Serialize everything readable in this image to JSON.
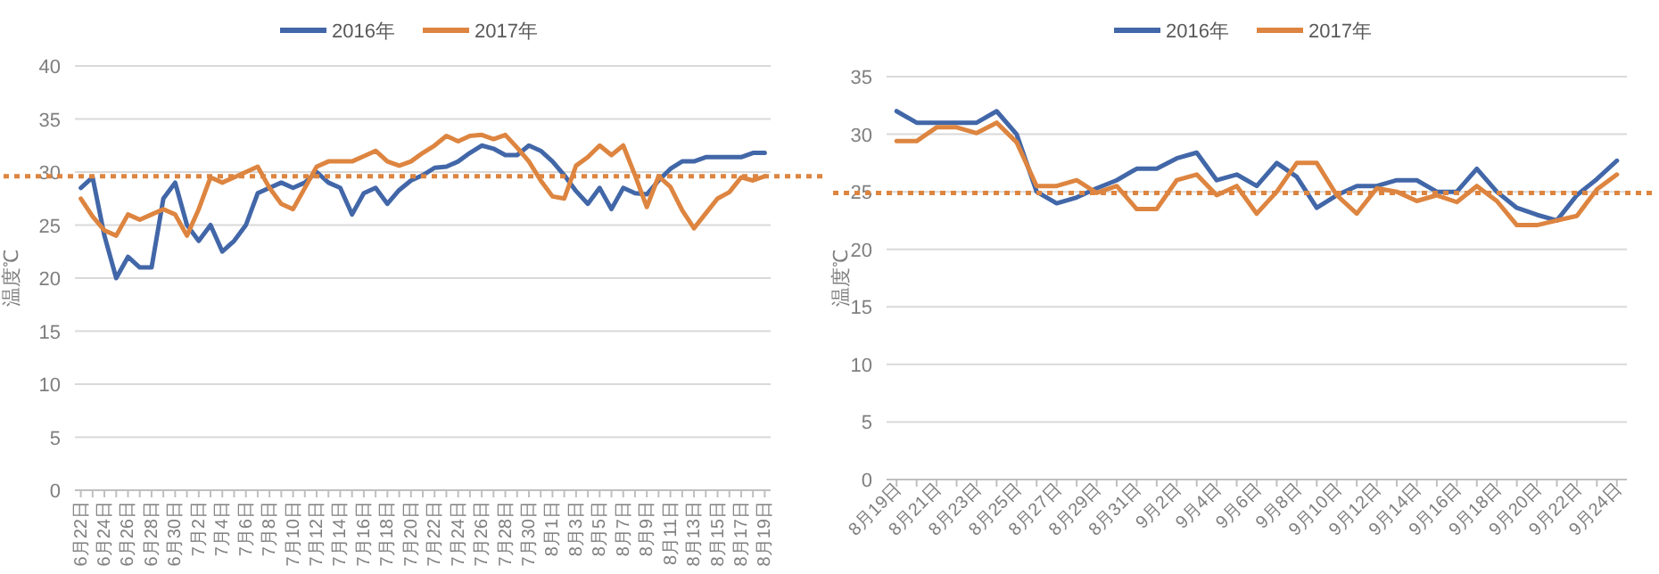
{
  "chart_data": [
    {
      "type": "line",
      "ylabel": "温度℃",
      "legend": "top",
      "grid": "y",
      "ylim": [
        0,
        40
      ],
      "yticks": [
        0,
        5,
        10,
        15,
        20,
        25,
        30,
        35,
        40
      ],
      "categories": [
        "6月22日",
        null,
        "6月24日",
        null,
        "6月26日",
        null,
        "6月28日",
        null,
        "6月30日",
        null,
        "7月2日",
        null,
        "7月4日",
        null,
        "7月6日",
        null,
        "7月8日",
        null,
        "7月10日",
        null,
        "7月12日",
        null,
        "7月14日",
        null,
        "7月16日",
        null,
        "7月18日",
        null,
        "7月20日",
        null,
        "7月22日",
        null,
        "7月24日",
        null,
        "7月26日",
        null,
        "7月28日",
        null,
        "7月30日",
        null,
        "8月1日",
        null,
        "8月3日",
        null,
        "8月5日",
        null,
        "8月7日",
        null,
        "8月9日",
        null,
        "8月11日",
        null,
        "8月13日",
        null,
        "8月15日",
        null,
        "8月17日",
        null,
        "8月19日"
      ],
      "series": [
        {
          "name": "2016年",
          "color": "#4267a8",
          "values": [
            28.5,
            29.5,
            24,
            20,
            22,
            21,
            21,
            27.5,
            29,
            25,
            23.5,
            25,
            22.5,
            23.5,
            25,
            28,
            28.5,
            29,
            28.5,
            29,
            30,
            29,
            28.5,
            26,
            28,
            28.5,
            27,
            28.3,
            29.2,
            29.7,
            30.4,
            30.5,
            31,
            31.8,
            32.5,
            32.2,
            31.6,
            31.6,
            32.5,
            32,
            31,
            29.7,
            28.2,
            27,
            28.5,
            26.5,
            28.5,
            28,
            27.9,
            29.2,
            30.3,
            31,
            31,
            31.4,
            31.4,
            31.4,
            31.4,
            31.8,
            31.8
          ]
        },
        {
          "name": "2017年",
          "color": "#dd8540",
          "values": [
            27.5,
            25.8,
            24.5,
            24,
            26,
            25.5,
            26,
            26.5,
            26,
            24,
            26.5,
            29.5,
            29,
            29.5,
            30,
            30.5,
            28.5,
            27,
            26.5,
            28.5,
            30.5,
            31,
            31,
            31,
            31.5,
            32,
            31,
            30.6,
            31,
            31.8,
            32.5,
            33.4,
            32.9,
            33.4,
            33.5,
            33.1,
            33.5,
            32.3,
            31,
            29.2,
            27.7,
            27.5,
            30.6,
            31.4,
            32.5,
            31.6,
            32.5,
            29.7,
            26.7,
            29.6,
            28.6,
            26.4,
            24.7,
            26.1,
            27.5,
            28.1,
            29.5,
            29.2,
            29.6
          ]
        }
      ],
      "ref_lines": [
        {
          "axis": "y",
          "value": 29.6,
          "color": "#dd8540",
          "line_style": "dotted"
        }
      ]
    },
    {
      "type": "line",
      "ylabel": "温度℃",
      "legend": "top",
      "grid": "y",
      "ylim": [
        0,
        35
      ],
      "yticks": [
        0,
        5,
        10,
        15,
        20,
        25,
        30,
        35
      ],
      "categories": [
        "8月19日",
        null,
        "8月21日",
        null,
        "8月23日",
        null,
        "8月25日",
        null,
        "8月27日",
        null,
        "8月29日",
        null,
        "8月31日",
        null,
        "9月2日",
        null,
        "9月4日",
        null,
        "9月6日",
        null,
        "9月8日",
        null,
        "9月10日",
        null,
        "9月12日",
        null,
        "9月14日",
        null,
        "9月16日",
        null,
        "9月18日",
        null,
        "9月20日",
        null,
        "9月22日",
        null,
        "9月24日"
      ],
      "series": [
        {
          "name": "2016年",
          "color": "#4267a8",
          "values": [
            32,
            31,
            31,
            31,
            31,
            32,
            30,
            25,
            24,
            24.5,
            25.3,
            26,
            27,
            27,
            27.9,
            28.4,
            26,
            26.5,
            25.5,
            27.5,
            26.3,
            23.6,
            24.7,
            25.5,
            25.5,
            26,
            26,
            25,
            25,
            27,
            25,
            23.6,
            23,
            22.5,
            24.7,
            26.1,
            27.7
          ]
        },
        {
          "name": "2017年",
          "color": "#dd8540",
          "values": [
            29.4,
            29.4,
            30.6,
            30.6,
            30.1,
            31,
            29.3,
            25.5,
            25.5,
            26,
            24.9,
            25.5,
            23.5,
            23.5,
            26,
            26.5,
            24.7,
            25.5,
            23.1,
            25,
            27.5,
            27.5,
            24.7,
            23.1,
            25.3,
            25,
            24.2,
            24.7,
            24.1,
            25.5,
            24.2,
            22.1,
            22.1,
            22.5,
            22.9,
            25.2,
            26.5
          ]
        }
      ],
      "ref_lines": [
        {
          "axis": "y",
          "value": 24.9,
          "color": "#dd8540",
          "line_style": "dotted"
        }
      ]
    }
  ]
}
